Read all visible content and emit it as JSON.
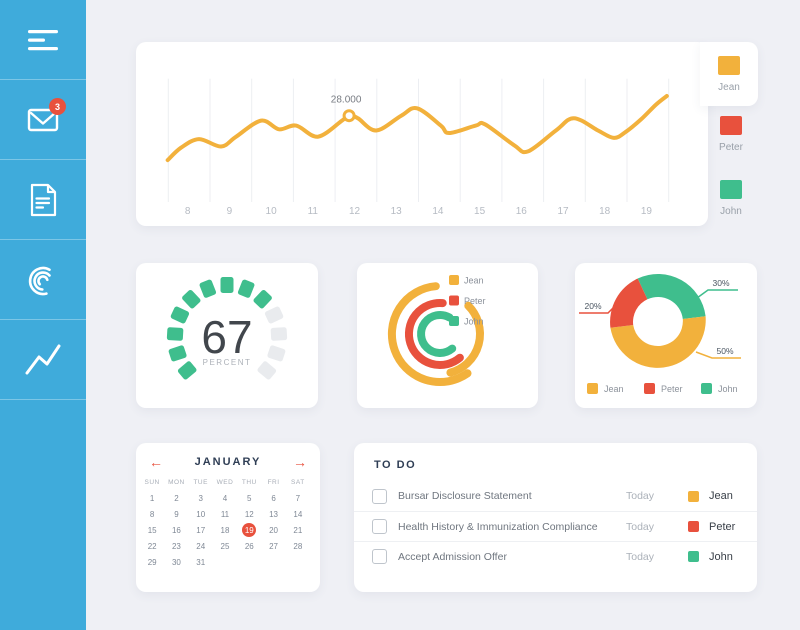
{
  "palette": {
    "yellow": "#F2B13C",
    "red": "#E8513D",
    "green": "#3FBE8D",
    "sidebar_blue": "#3FABDB",
    "background": "#EFF0F5",
    "card": "#FFFFFF",
    "title_navy": "#2F3E55",
    "accent_red": "#E8513D",
    "empty_gray": "#E9EBEE"
  },
  "people": [
    {
      "name": "Jean",
      "color": "#F2B13C"
    },
    {
      "name": "Peter",
      "color": "#E8513D"
    },
    {
      "name": "John",
      "color": "#3FBE8D"
    }
  ],
  "sidebar": {
    "unread_badge": "3",
    "items": [
      {
        "name": "menu"
      },
      {
        "name": "messages",
        "badge": "3"
      },
      {
        "name": "documents"
      },
      {
        "name": "reports"
      },
      {
        "name": "analytics"
      }
    ]
  },
  "chart_data": [
    {
      "id": "activity-line",
      "type": "line",
      "title": "",
      "grid": "vertical",
      "x_ticks": [
        "8",
        "9",
        "10",
        "11",
        "12",
        "13",
        "14",
        "15",
        "16",
        "17",
        "18",
        "19"
      ],
      "series": [
        {
          "name": "Jean",
          "color": "#F2B13C",
          "points": [
            [
              7.52,
              34
            ],
            [
              7.84,
              44
            ],
            [
              8.27,
              51
            ],
            [
              8.8,
              45
            ],
            [
              9.16,
              53
            ],
            [
              9.76,
              66
            ],
            [
              10.19,
              59
            ],
            [
              10.6,
              62
            ],
            [
              11.12,
              53
            ],
            [
              11.7,
              66
            ],
            [
              11.87,
              70
            ],
            [
              12.08,
              68
            ],
            [
              12.52,
              58
            ],
            [
              13.12,
              70
            ],
            [
              13.5,
              76
            ],
            [
              14.07,
              62
            ],
            [
              14.27,
              56
            ],
            [
              14.91,
              62
            ],
            [
              15.13,
              63
            ],
            [
              15.83,
              46
            ],
            [
              16.16,
              41
            ],
            [
              16.83,
              58
            ],
            [
              17.26,
              68
            ],
            [
              17.84,
              58
            ],
            [
              18.22,
              52
            ],
            [
              18.51,
              57
            ],
            [
              18.87,
              67
            ],
            [
              19.23,
              79
            ],
            [
              19.49,
              86
            ]
          ]
        }
      ],
      "annotation": {
        "x": 11.87,
        "y": 70,
        "label": "28.000"
      },
      "legend": [
        {
          "name": "Jean",
          "color": "#F2B13C",
          "highlighted": true
        },
        {
          "name": "Peter",
          "color": "#E8513D",
          "highlighted": false
        },
        {
          "name": "John",
          "color": "#3FBE8D",
          "highlighted": false
        }
      ]
    },
    {
      "id": "percent-gauge",
      "type": "gauge",
      "value": "67",
      "unit": "PERCENT",
      "segments_total": 13,
      "segments_filled": 9,
      "filled_color": "#3FBE8D",
      "empty_color": "#E9EBEE"
    },
    {
      "id": "radial-arcs",
      "type": "radial-arcs",
      "legend": [
        {
          "name": "Jean",
          "color": "#F2B13C"
        },
        {
          "name": "Peter",
          "color": "#E8513D"
        },
        {
          "name": "John",
          "color": "#3FBE8D"
        }
      ],
      "arcs": [
        {
          "person": "Jean",
          "color": "#F2B13C",
          "radius": 48,
          "start_deg": -95,
          "end_deg": -305
        },
        {
          "person": "Jean",
          "color": "#F2B13C",
          "radius": 40,
          "start_deg": -45,
          "end_deg": 75
        },
        {
          "person": "Peter",
          "color": "#E8513D",
          "radius": 31,
          "start_deg": -85,
          "end_deg": -310
        },
        {
          "person": "John",
          "color": "#3FBE8D",
          "radius": 19,
          "start_deg": -60,
          "end_deg": -310
        }
      ]
    },
    {
      "id": "share-donut",
      "type": "pie",
      "start_deg": -115,
      "slices": [
        {
          "name": "John",
          "pct": 30,
          "label": "30%",
          "color": "#3FBE8D"
        },
        {
          "name": "Jean",
          "pct": 50,
          "label": "50%",
          "color": "#F2B13C"
        },
        {
          "name": "Peter",
          "pct": 20,
          "label": "20%",
          "color": "#E8513D"
        }
      ],
      "legend": [
        {
          "name": "Jean",
          "color": "#F2B13C"
        },
        {
          "name": "Peter",
          "color": "#E8513D"
        },
        {
          "name": "John",
          "color": "#3FBE8D"
        }
      ]
    }
  ],
  "calendar": {
    "month": "JANUARY",
    "prev_icon": "←",
    "next_icon": "→",
    "weekdays": [
      "SUN",
      "MON",
      "TUE",
      "WED",
      "THU",
      "FRI",
      "SAT"
    ],
    "days": [
      1,
      2,
      3,
      4,
      5,
      6,
      7,
      8,
      9,
      10,
      11,
      12,
      13,
      14,
      15,
      16,
      17,
      18,
      19,
      20,
      21,
      22,
      23,
      24,
      25,
      26,
      27,
      28,
      29,
      30,
      31
    ],
    "first_day_column": 0,
    "highlighted_day": 19
  },
  "todo": {
    "title": "TO DO",
    "items": [
      {
        "task": "Bursar Disclosure Statement",
        "due": "Today",
        "assignee": "Jean",
        "color": "#F2B13C"
      },
      {
        "task": "Health History & Immunization Compliance",
        "due": "Today",
        "assignee": "Peter",
        "color": "#E8513D"
      },
      {
        "task": "Accept Admission Offer",
        "due": "Today",
        "assignee": "John",
        "color": "#3FBE8D"
      }
    ]
  }
}
